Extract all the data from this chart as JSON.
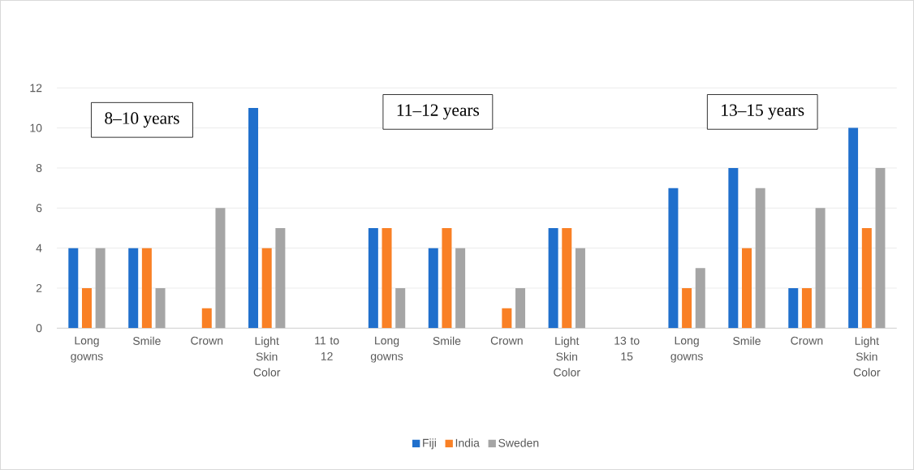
{
  "chart_data": {
    "type": "bar",
    "categories": [
      "Long gowns",
      "Smile",
      "Crown",
      "Light Skin Color",
      "11 to 12",
      "Long gowns",
      "Smile",
      "Crown",
      "Light Skin Color",
      "13 to 15",
      "Long gowns",
      "Smile",
      "Crown",
      "Light Skin Color"
    ],
    "series": [
      {
        "name": "Fiji",
        "color": "#1f6fcc",
        "values": [
          4,
          4,
          0,
          11,
          null,
          5,
          4,
          0,
          5,
          null,
          7,
          8,
          2,
          10
        ]
      },
      {
        "name": "India",
        "color": "#f98025",
        "values": [
          2,
          4,
          1,
          4,
          null,
          5,
          5,
          1,
          5,
          null,
          2,
          4,
          2,
          5
        ]
      },
      {
        "name": "Sweden",
        "color": "#a5a5a5",
        "values": [
          4,
          2,
          6,
          5,
          null,
          2,
          4,
          2,
          4,
          null,
          3,
          7,
          6,
          8
        ]
      }
    ],
    "annotations": [
      "8–10 years",
      "11–12 years",
      "13–15 years"
    ],
    "ylim": [
      0,
      12
    ],
    "yticks": [
      0,
      2,
      4,
      6,
      8,
      10,
      12
    ],
    "grid": "y",
    "legend": "bottom"
  }
}
